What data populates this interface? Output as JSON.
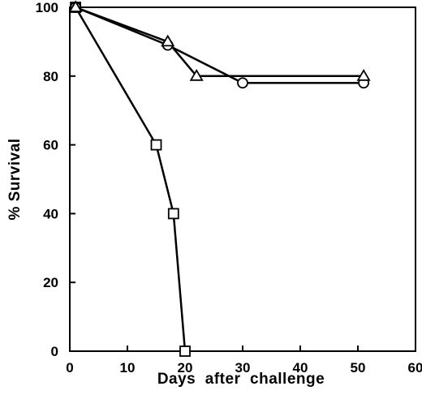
{
  "chart_data": {
    "type": "line",
    "title": "",
    "xlabel": "Days  after  challenge",
    "ylabel": "% Survival",
    "xlim": [
      0,
      60
    ],
    "ylim": [
      0,
      100
    ],
    "xticks": [
      "0",
      "10",
      "20",
      "30",
      "40",
      "50",
      "60"
    ],
    "yticks": [
      "0",
      "20",
      "40",
      "60",
      "80",
      "100"
    ],
    "grid": false,
    "legend": "none",
    "series": [
      {
        "marker": "square",
        "x": [
          1,
          15,
          18,
          20
        ],
        "y": [
          100,
          60,
          40,
          0
        ]
      },
      {
        "marker": "circle",
        "x": [
          1,
          17,
          30,
          51
        ],
        "y": [
          100,
          89,
          78,
          78
        ]
      },
      {
        "marker": "triangle",
        "x": [
          1,
          17,
          22,
          51
        ],
        "y": [
          100,
          90,
          80,
          80
        ]
      }
    ]
  }
}
